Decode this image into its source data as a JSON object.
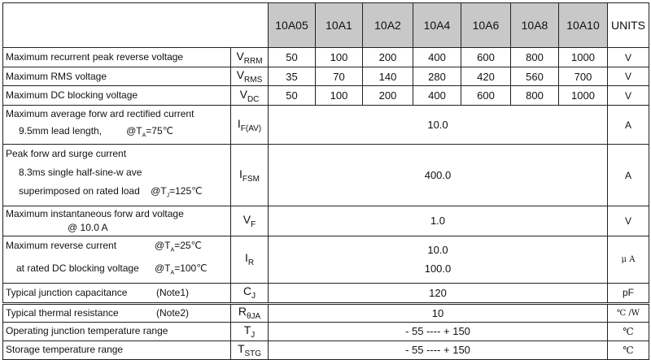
{
  "header": {
    "models": [
      "10A05",
      "10A1",
      "10A2",
      "10A4",
      "10A6",
      "10A8",
      "10A10"
    ],
    "units": "UNITS"
  },
  "rows": {
    "vrrm": {
      "desc": "Maximum recurrent peak reverse voltage",
      "sym": "V",
      "sub": "RRM",
      "values": [
        "50",
        "100",
        "200",
        "400",
        "600",
        "800",
        "1000"
      ],
      "unit": "V"
    },
    "vrms": {
      "desc": "Maximum RMS voltage",
      "sym": "V",
      "sub": "RMS",
      "values": [
        "35",
        "70",
        "140",
        "280",
        "420",
        "560",
        "700"
      ],
      "unit": "V"
    },
    "vdc": {
      "desc": "Maximum DC blocking voltage",
      "sym": "V",
      "sub": "DC",
      "values": [
        "50",
        "100",
        "200",
        "400",
        "600",
        "800",
        "1000"
      ],
      "unit": "V"
    },
    "ifav": {
      "desc1": "Maximum average forw ard rectified current",
      "desc2a": "9.5mm lead length,",
      "desc2b": "@T",
      "desc2sub": "A",
      "desc2c": "=75℃",
      "sym": "I",
      "sub": "F(AV)",
      "value": "10.0",
      "unit": "A"
    },
    "ifsm": {
      "desc1": "Peak forw ard surge current",
      "desc2": "8.3ms single half-sine-w ave",
      "desc3a": "superimposed on rated load",
      "desc3b": "@T",
      "desc3sub": "J",
      "desc3c": "=125℃",
      "sym": "I",
      "sub": "FSM",
      "value": "400.0",
      "unit": "A"
    },
    "vf": {
      "desc1": "Maximum instantaneous forw ard voltage",
      "desc2": "@ 10.0  A",
      "sym": "V",
      "sub": "F",
      "value": "1.0",
      "unit": "V"
    },
    "ir": {
      "desc1a": "Maximum reverse current",
      "desc1b": "@T",
      "desc1sub": "A",
      "desc1c": "=25℃",
      "desc2a": "at rated DC blocking  voltage",
      "desc2b": "@T",
      "desc2sub": "A",
      "desc2c": "=100℃",
      "sym": "I",
      "sub": "R",
      "value1": "10.0",
      "value2": "100.0",
      "unit": "μ A"
    },
    "cj": {
      "desc": "Typical  junction  capacitance",
      "note": "(Note1)",
      "sym": "C",
      "sub": "J",
      "value": "120",
      "unit": "pF"
    },
    "rth": {
      "desc": "Typical  thermal  resistance",
      "note": "(Note2)",
      "sym": "R",
      "sub": "θJA",
      "value": "10",
      "unit": "℃ /W"
    },
    "tj": {
      "desc": "Operating junction temperature range",
      "sym": "T",
      "sub": "J",
      "value": "- 55 ---- + 150",
      "unit": "℃"
    },
    "tstg": {
      "desc": "Storage temperature range",
      "sym": "T",
      "sub": "STG",
      "value": "- 55 ---- + 150",
      "unit": "℃"
    }
  }
}
